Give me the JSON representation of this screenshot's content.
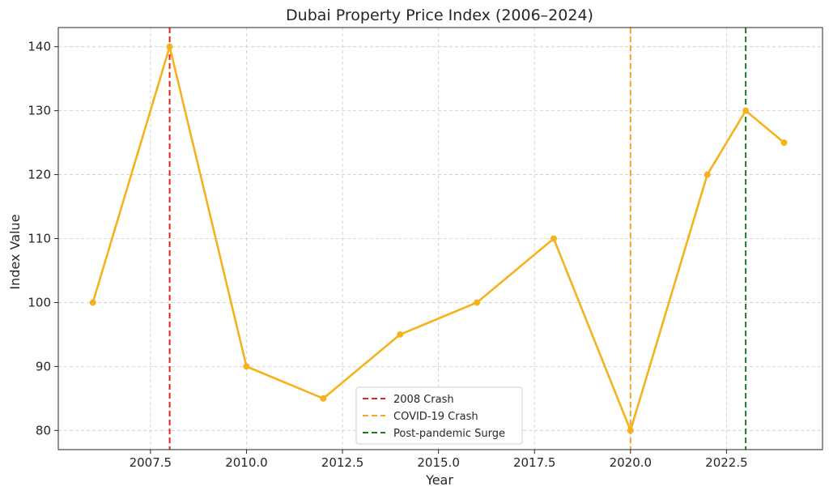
{
  "chart_data": {
    "type": "line",
    "title": "Dubai Property Price Index (2006–2024)",
    "xlabel": "Year",
    "ylabel": "Index Value",
    "xlim": [
      2005.1,
      2025
    ],
    "ylim": [
      77,
      143
    ],
    "xticks": [
      2007.5,
      2010.0,
      2012.5,
      2015.0,
      2017.5,
      2020.0,
      2022.5
    ],
    "xtick_labels": [
      "2007.5",
      "2010.0",
      "2012.5",
      "2015.0",
      "2017.5",
      "2020.0",
      "2022.5"
    ],
    "yticks": [
      80,
      90,
      100,
      110,
      120,
      130,
      140
    ],
    "ytick_labels": [
      "80",
      "90",
      "100",
      "110",
      "120",
      "130",
      "140"
    ],
    "grid": true,
    "series": [
      {
        "color": "#f5b21c",
        "x": [
          2006,
          2008,
          2010,
          2012,
          2014,
          2016,
          2018,
          2020,
          2022,
          2023,
          2024
        ],
        "y": [
          100,
          140,
          90,
          85,
          95,
          100,
          110,
          80,
          120,
          130,
          125
        ]
      }
    ],
    "vlines": [
      {
        "x": 2008,
        "label": "2008 Crash",
        "color": "#e8231a"
      },
      {
        "x": 2020,
        "label": "COVID-19 Crash",
        "color": "#f5a623"
      },
      {
        "x": 2023,
        "label": "Post-pandemic Surge",
        "color": "#1a7f1a"
      }
    ],
    "legend_position": "bottom-center"
  }
}
